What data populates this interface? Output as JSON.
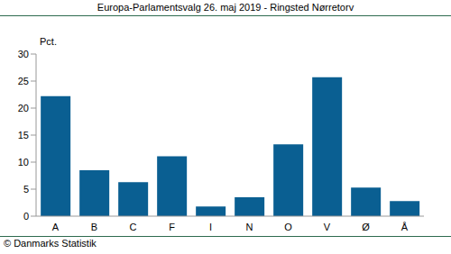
{
  "chart_data": {
    "type": "bar",
    "title": "Europa-Parlamentsvalg 26. maj 2019 - Ringsted Nørretorv",
    "ylabel": "Pct.",
    "source": "© Danmarks Statistik",
    "categories": [
      "A",
      "B",
      "C",
      "F",
      "I",
      "N",
      "O",
      "V",
      "Ø",
      "Å"
    ],
    "values": [
      22.2,
      8.5,
      6.3,
      11.1,
      1.8,
      3.5,
      13.3,
      25.7,
      5.3,
      2.8
    ],
    "color": "#0a5f92",
    "ylim": [
      0,
      30
    ],
    "yticks": [
      0,
      5,
      10,
      15,
      20,
      25,
      30
    ],
    "grid": false
  }
}
